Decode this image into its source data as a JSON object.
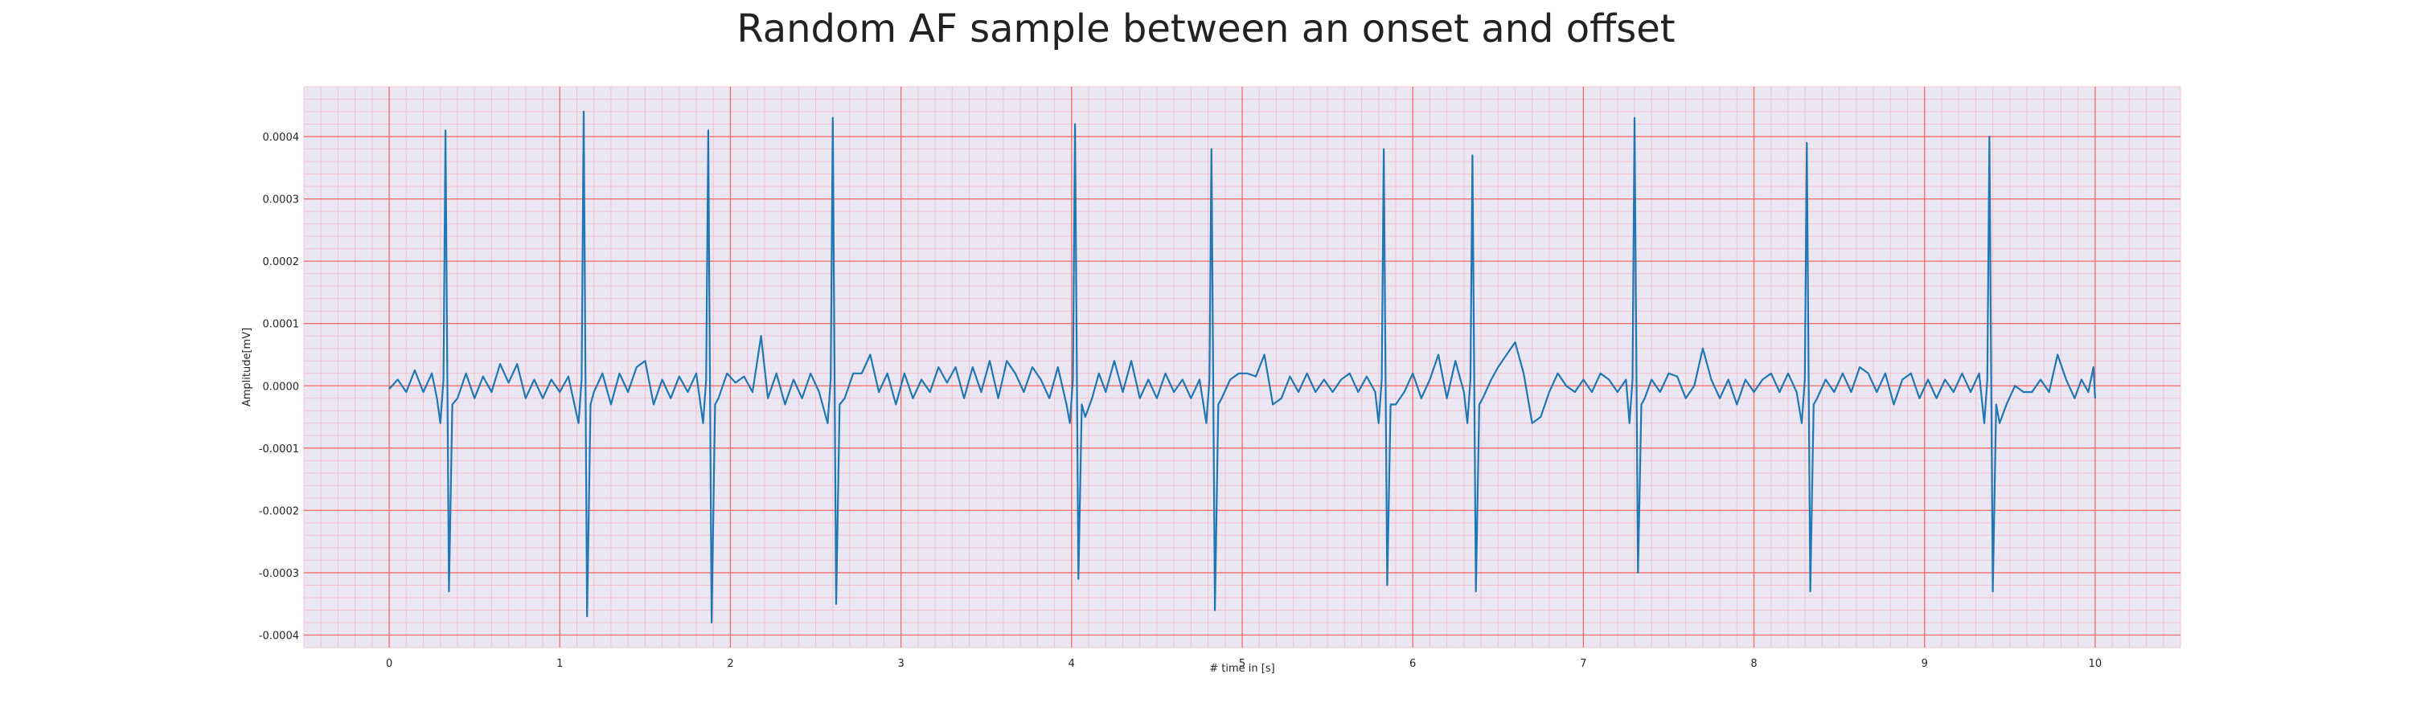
{
  "chart_data": {
    "type": "line",
    "title": "Random AF sample between an onset and offset",
    "xlabel": "# time in [s]",
    "ylabel": "Amplitude[mV]",
    "xlim": [
      -0.5,
      10.5
    ],
    "ylim": [
      -0.00042,
      0.00048
    ],
    "x_ticks": [
      0,
      1,
      2,
      3,
      4,
      5,
      6,
      7,
      8,
      9,
      10
    ],
    "x_tick_labels": [
      "0",
      "1",
      "2",
      "3",
      "4",
      "5",
      "6",
      "7",
      "8",
      "9",
      "10"
    ],
    "y_ticks": [
      -0.0004,
      -0.0003,
      -0.0002,
      -0.0001,
      0.0,
      0.0001,
      0.0002,
      0.0003,
      0.0004
    ],
    "y_tick_labels": [
      "-0.0004",
      "-0.0003",
      "-0.0002",
      "-0.0001",
      "0.0000",
      "0.0001",
      "0.0002",
      "0.0003",
      "0.0004"
    ],
    "grid": true,
    "series": [
      {
        "color": "#1f77b4",
        "x_start": 0,
        "x_end": 10,
        "r_peaks": [
          {
            "t": 0.33,
            "peak": 0.00041,
            "trough": -0.00033
          },
          {
            "t": 1.14,
            "peak": 0.00044,
            "trough": -0.00037
          },
          {
            "t": 1.87,
            "peak": 0.00041,
            "trough": -0.00038
          },
          {
            "t": 2.6,
            "peak": 0.00043,
            "trough": -0.00035
          },
          {
            "t": 4.02,
            "peak": 0.00042,
            "trough": -0.00031
          },
          {
            "t": 4.82,
            "peak": 0.00038,
            "trough": -0.00036
          },
          {
            "t": 5.83,
            "peak": 0.00038,
            "trough": -0.00032
          },
          {
            "t": 6.35,
            "peak": 0.00037,
            "trough": -0.00033
          },
          {
            "t": 7.3,
            "peak": 0.00043,
            "trough": -0.0003
          },
          {
            "t": 8.31,
            "peak": 0.00039,
            "trough": -0.00033
          },
          {
            "t": 9.38,
            "peak": 0.0004,
            "trough": -0.00033
          }
        ],
        "baseline_points": [
          [
            0.0,
            -5e-06
          ],
          [
            0.05,
            1e-05
          ],
          [
            0.1,
            -1e-05
          ],
          [
            0.15,
            2.5e-05
          ],
          [
            0.2,
            -1e-05
          ],
          [
            0.25,
            2e-05
          ],
          [
            0.28,
            -2e-05
          ],
          [
            0.4,
            -2e-05
          ],
          [
            0.45,
            2e-05
          ],
          [
            0.5,
            -2e-05
          ],
          [
            0.55,
            1.5e-05
          ],
          [
            0.6,
            -1e-05
          ],
          [
            0.65,
            3.5e-05
          ],
          [
            0.7,
            5e-06
          ],
          [
            0.75,
            3.5e-05
          ],
          [
            0.8,
            -2e-05
          ],
          [
            0.85,
            1e-05
          ],
          [
            0.9,
            -2e-05
          ],
          [
            0.95,
            1e-05
          ],
          [
            1.0,
            -1e-05
          ],
          [
            1.05,
            1.5e-05
          ],
          [
            1.2,
            -1e-05
          ],
          [
            1.25,
            2e-05
          ],
          [
            1.3,
            -3e-05
          ],
          [
            1.35,
            2e-05
          ],
          [
            1.4,
            -1e-05
          ],
          [
            1.45,
            3e-05
          ],
          [
            1.5,
            4e-05
          ],
          [
            1.55,
            -3e-05
          ],
          [
            1.6,
            1e-05
          ],
          [
            1.65,
            -2e-05
          ],
          [
            1.7,
            1.5e-05
          ],
          [
            1.75,
            -1e-05
          ],
          [
            1.8,
            2e-05
          ],
          [
            1.93,
            -2e-05
          ],
          [
            1.98,
            2e-05
          ],
          [
            2.03,
            5e-06
          ],
          [
            2.08,
            1.5e-05
          ],
          [
            2.13,
            -1e-05
          ],
          [
            2.18,
            8e-05
          ],
          [
            2.22,
            -2e-05
          ],
          [
            2.27,
            2e-05
          ],
          [
            2.32,
            -3e-05
          ],
          [
            2.37,
            1e-05
          ],
          [
            2.42,
            -2e-05
          ],
          [
            2.47,
            2e-05
          ],
          [
            2.52,
            -1e-05
          ],
          [
            2.67,
            -2e-05
          ],
          [
            2.72,
            2e-05
          ],
          [
            2.77,
            2e-05
          ],
          [
            2.82,
            5e-05
          ],
          [
            2.87,
            -1e-05
          ],
          [
            2.92,
            2e-05
          ],
          [
            2.97,
            -3e-05
          ],
          [
            3.02,
            2e-05
          ],
          [
            3.07,
            -2e-05
          ],
          [
            3.12,
            1e-05
          ],
          [
            3.17,
            -1e-05
          ],
          [
            3.22,
            3e-05
          ],
          [
            3.27,
            5e-06
          ],
          [
            3.32,
            3e-05
          ],
          [
            3.37,
            -2e-05
          ],
          [
            3.42,
            3e-05
          ],
          [
            3.47,
            -1e-05
          ],
          [
            3.52,
            4e-05
          ],
          [
            3.57,
            -2e-05
          ],
          [
            3.62,
            4e-05
          ],
          [
            3.67,
            2e-05
          ],
          [
            3.72,
            -1e-05
          ],
          [
            3.77,
            3e-05
          ],
          [
            3.82,
            1e-05
          ],
          [
            3.87,
            -2e-05
          ],
          [
            3.92,
            3e-05
          ],
          [
            3.97,
            -3e-05
          ],
          [
            4.08,
            -5e-05
          ],
          [
            4.12,
            -2e-05
          ],
          [
            4.16,
            2e-05
          ],
          [
            4.2,
            -1e-05
          ],
          [
            4.25,
            4e-05
          ],
          [
            4.3,
            -1e-05
          ],
          [
            4.35,
            4e-05
          ],
          [
            4.4,
            -2e-05
          ],
          [
            4.45,
            1e-05
          ],
          [
            4.5,
            -2e-05
          ],
          [
            4.55,
            2e-05
          ],
          [
            4.6,
            -1e-05
          ],
          [
            4.65,
            1e-05
          ],
          [
            4.7,
            -2e-05
          ],
          [
            4.75,
            1e-05
          ],
          [
            4.88,
            -2e-05
          ],
          [
            4.93,
            1e-05
          ],
          [
            4.98,
            2e-05
          ],
          [
            5.03,
            2e-05
          ],
          [
            5.08,
            1.5e-05
          ],
          [
            5.13,
            5e-05
          ],
          [
            5.18,
            -3e-05
          ],
          [
            5.23,
            -2e-05
          ],
          [
            5.28,
            1.5e-05
          ],
          [
            5.33,
            -1e-05
          ],
          [
            5.38,
            2e-05
          ],
          [
            5.43,
            -1e-05
          ],
          [
            5.48,
            1e-05
          ],
          [
            5.53,
            -1e-05
          ],
          [
            5.58,
            1e-05
          ],
          [
            5.63,
            2e-05
          ],
          [
            5.68,
            -1e-05
          ],
          [
            5.73,
            1.5e-05
          ],
          [
            5.78,
            -1e-05
          ],
          [
            5.9,
            -3e-05
          ],
          [
            5.95,
            -1e-05
          ],
          [
            6.0,
            2e-05
          ],
          [
            6.05,
            -2e-05
          ],
          [
            6.1,
            1e-05
          ],
          [
            6.15,
            5e-05
          ],
          [
            6.2,
            -2e-05
          ],
          [
            6.25,
            4e-05
          ],
          [
            6.3,
            -1e-05
          ],
          [
            6.41,
            -2e-05
          ],
          [
            6.46,
            1e-05
          ],
          [
            6.5,
            3e-05
          ],
          [
            6.55,
            5e-05
          ],
          [
            6.6,
            7e-05
          ],
          [
            6.65,
            2e-05
          ],
          [
            6.7,
            -6e-05
          ],
          [
            6.75,
            -5e-05
          ],
          [
            6.8,
            -1e-05
          ],
          [
            6.85,
            2e-05
          ],
          [
            6.9,
            0.0
          ],
          [
            6.95,
            -1e-05
          ],
          [
            7.0,
            1e-05
          ],
          [
            7.05,
            -1e-05
          ],
          [
            7.1,
            2e-05
          ],
          [
            7.15,
            1e-05
          ],
          [
            7.2,
            -1e-05
          ],
          [
            7.25,
            1e-05
          ],
          [
            7.36,
            -2e-05
          ],
          [
            7.4,
            1e-05
          ],
          [
            7.45,
            -1e-05
          ],
          [
            7.5,
            2e-05
          ],
          [
            7.55,
            1.5e-05
          ],
          [
            7.6,
            -2e-05
          ],
          [
            7.65,
            0.0
          ],
          [
            7.7,
            6e-05
          ],
          [
            7.75,
            1e-05
          ],
          [
            7.8,
            -2e-05
          ],
          [
            7.85,
            1e-05
          ],
          [
            7.9,
            -3e-05
          ],
          [
            7.95,
            1e-05
          ],
          [
            8.0,
            -1e-05
          ],
          [
            8.05,
            1e-05
          ],
          [
            8.1,
            2e-05
          ],
          [
            8.15,
            -1e-05
          ],
          [
            8.2,
            2e-05
          ],
          [
            8.25,
            -1e-05
          ],
          [
            8.37,
            -2e-05
          ],
          [
            8.42,
            1e-05
          ],
          [
            8.47,
            -1e-05
          ],
          [
            8.52,
            2e-05
          ],
          [
            8.57,
            -1e-05
          ],
          [
            8.62,
            3e-05
          ],
          [
            8.67,
            2e-05
          ],
          [
            8.72,
            -1e-05
          ],
          [
            8.77,
            2e-05
          ],
          [
            8.82,
            -3e-05
          ],
          [
            8.87,
            1e-05
          ],
          [
            8.92,
            2e-05
          ],
          [
            8.97,
            -2e-05
          ],
          [
            9.02,
            1e-05
          ],
          [
            9.07,
            -2e-05
          ],
          [
            9.12,
            1e-05
          ],
          [
            9.17,
            -1e-05
          ],
          [
            9.22,
            2e-05
          ],
          [
            9.27,
            -1e-05
          ],
          [
            9.32,
            2e-05
          ],
          [
            9.44,
            -6e-05
          ],
          [
            9.48,
            -3e-05
          ],
          [
            9.53,
            0.0
          ],
          [
            9.58,
            -1e-05
          ],
          [
            9.63,
            -1e-05
          ],
          [
            9.68,
            1e-05
          ],
          [
            9.73,
            -1e-05
          ],
          [
            9.78,
            5e-05
          ],
          [
            9.83,
            1e-05
          ],
          [
            9.88,
            -2e-05
          ],
          [
            9.92,
            1e-05
          ],
          [
            9.96,
            -1e-05
          ],
          [
            9.99,
            3e-05
          ],
          [
            10.0,
            -2e-05
          ]
        ]
      }
    ]
  }
}
